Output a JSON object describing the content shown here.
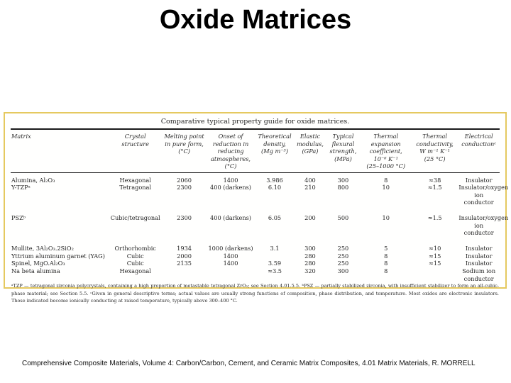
{
  "slide": {
    "title": "Oxide Matrices",
    "citation": "Comprehensive Composite Materials, Volume 4: Carbon/Carbon, Cement, and Ceramic Matrix Composites, 4.01 Matrix Materials, R. MORRELL"
  },
  "colors": {
    "table_border": "#e5c95f",
    "text": "#1f1f1f"
  },
  "table": {
    "caption": "Comparative typical property guide for oxide matrices.",
    "columns": [
      {
        "label": "Matrix"
      },
      {
        "label": "Crystal\nstructure"
      },
      {
        "label": "Melting point\nin pure form,\n(°C)"
      },
      {
        "label": "Onset of\nreduction in\nreducing\natmospheres,\n(°C)"
      },
      {
        "label": "Theoretical\ndensity,\n(Mg m⁻³)"
      },
      {
        "label": "Elastic\nmodulus,\n(GPa)"
      },
      {
        "label": "Typical\nflexural\nstrength,\n(MPa)"
      },
      {
        "label": "Thermal\nexpansion\ncoefficient,\n10⁻⁶ K⁻¹\n(25–1000 °C)"
      },
      {
        "label": "Thermal\nconductivity,\nW m⁻¹ K⁻¹\n(25 °C)"
      },
      {
        "label": "Electrical\nconductionᶜ"
      }
    ],
    "rows": [
      {
        "group_start": false,
        "cells": [
          "Alumina, Al₂O₃",
          "Hexagonal",
          "2060",
          "1400",
          "3.986",
          "400",
          "300",
          "8",
          "≈38",
          "Insulator"
        ]
      },
      {
        "group_start": false,
        "cells": [
          "Y-TZPᵃ",
          "Tetragonal",
          "2300",
          "400 (darkens)",
          "6.10",
          "210",
          "800",
          "10",
          "≈1.5",
          "Insulator/oxygen ion conductor"
        ]
      },
      {
        "group_start": true,
        "cells": [
          "PSZᵇ",
          "Cubic/tetragonal",
          "2300",
          "400 (darkens)",
          "6.05",
          "200",
          "500",
          "10",
          "≈1.5",
          "Insulator/oxygen ion conductor"
        ]
      },
      {
        "group_start": true,
        "cells": [
          "Mullite, 3Al₂O₃.2SiO₂",
          "Orthorhombic",
          "1934",
          "1000 (darkens)",
          "3.1",
          "300",
          "250",
          "5",
          "≈10",
          "Insulator"
        ]
      },
      {
        "group_start": false,
        "cells": [
          "Yttrium aluminum garnet (YAG)",
          "Cubic",
          "2000",
          "1400",
          "",
          "280",
          "250",
          "8",
          "≈15",
          "Insulator"
        ]
      },
      {
        "group_start": false,
        "cells": [
          "Spinel, MgO.Al₂O₃",
          "Cubic",
          "2135",
          "1400",
          "3.59",
          "280",
          "250",
          "8",
          "≈15",
          "Insulator"
        ]
      },
      {
        "group_start": false,
        "cells": [
          "Na beta alumina",
          "Hexagonal",
          "",
          "",
          "≈3.5",
          "320",
          "300",
          "8",
          "",
          "Sodium ion conductor"
        ]
      }
    ],
    "footnote": "ᵃTZP — tetragonal zirconia polycrystals, containing a high proportion of metastable tetragonal ZrO₂; see Section 4.01.5.5.  ᵇPSZ — partially stabilized zirconia, with insufficient stabilizer to form an all-cubic-phase material; see Section 5.5.  ᶜGiven in general descriptive terms; actual values are usually strong functions of composition, phase distribution, and temperature. Most oxides are electronic insulators. Those indicated become ionically conducting at raised temperature, typically above 300–400 °C."
  }
}
